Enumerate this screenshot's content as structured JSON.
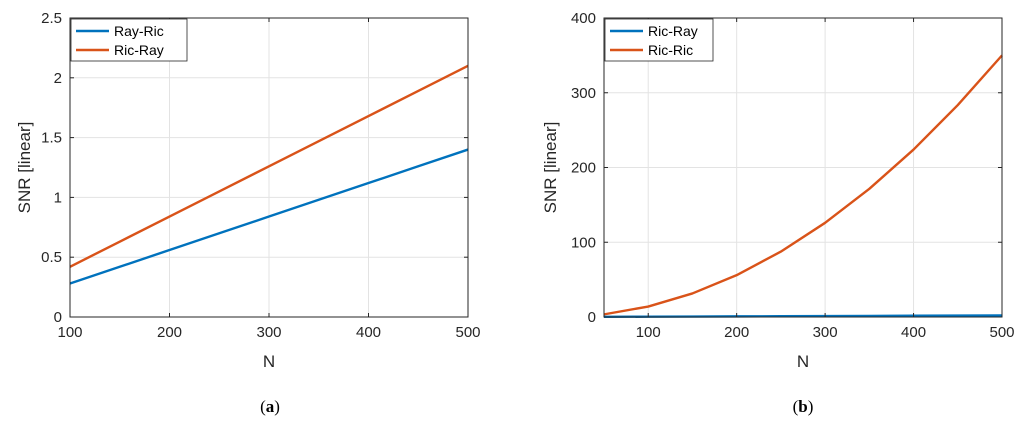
{
  "chart_data": [
    {
      "type": "line",
      "panel_label": "a",
      "xlabel": "N",
      "ylabel": "SNR [linear]",
      "xlim": [
        100,
        500
      ],
      "ylim": [
        0,
        2.5
      ],
      "xticks": [
        100,
        200,
        300,
        400,
        500
      ],
      "yticks": [
        0,
        0.5,
        1,
        1.5,
        2,
        2.5
      ],
      "ytick_labels": [
        "0",
        "0.5",
        "1",
        "1.5",
        "2",
        "2.5"
      ],
      "grid": true,
      "legend_position": "top-left",
      "series": [
        {
          "name": "Ray-Ric",
          "color": "#0072BD",
          "x": [
            100,
            150,
            200,
            250,
            300,
            350,
            400,
            450,
            500
          ],
          "y": [
            0.28,
            0.42,
            0.56,
            0.7,
            0.84,
            0.98,
            1.12,
            1.26,
            1.4
          ]
        },
        {
          "name": "Ric-Ray",
          "color": "#D95319",
          "x": [
            100,
            150,
            200,
            250,
            300,
            350,
            400,
            450,
            500
          ],
          "y": [
            0.42,
            0.63,
            0.84,
            1.05,
            1.26,
            1.47,
            1.68,
            1.89,
            2.1
          ]
        }
      ]
    },
    {
      "type": "line",
      "panel_label": "b",
      "xlabel": "N",
      "ylabel": "SNR [linear]",
      "xlim": [
        50,
        500
      ],
      "ylim": [
        0,
        400
      ],
      "xticks": [
        100,
        200,
        300,
        400,
        500
      ],
      "yticks": [
        0,
        100,
        200,
        300,
        400
      ],
      "ytick_labels": [
        "0",
        "100",
        "200",
        "300",
        "400"
      ],
      "grid": true,
      "legend_position": "top-left",
      "series": [
        {
          "name": "Ric-Ray",
          "color": "#0072BD",
          "x": [
            50,
            100,
            150,
            200,
            250,
            300,
            350,
            400,
            450,
            500
          ],
          "y": [
            0.2,
            0.42,
            0.63,
            0.84,
            1.05,
            1.26,
            1.47,
            1.68,
            1.89,
            2.1
          ]
        },
        {
          "name": "Ric-Ric",
          "color": "#D95319",
          "x": [
            50,
            100,
            150,
            200,
            250,
            300,
            350,
            400,
            450,
            500
          ],
          "y": [
            3.5,
            14,
            31.5,
            56,
            87.5,
            126,
            171.5,
            224,
            283.5,
            350
          ]
        }
      ]
    }
  ]
}
